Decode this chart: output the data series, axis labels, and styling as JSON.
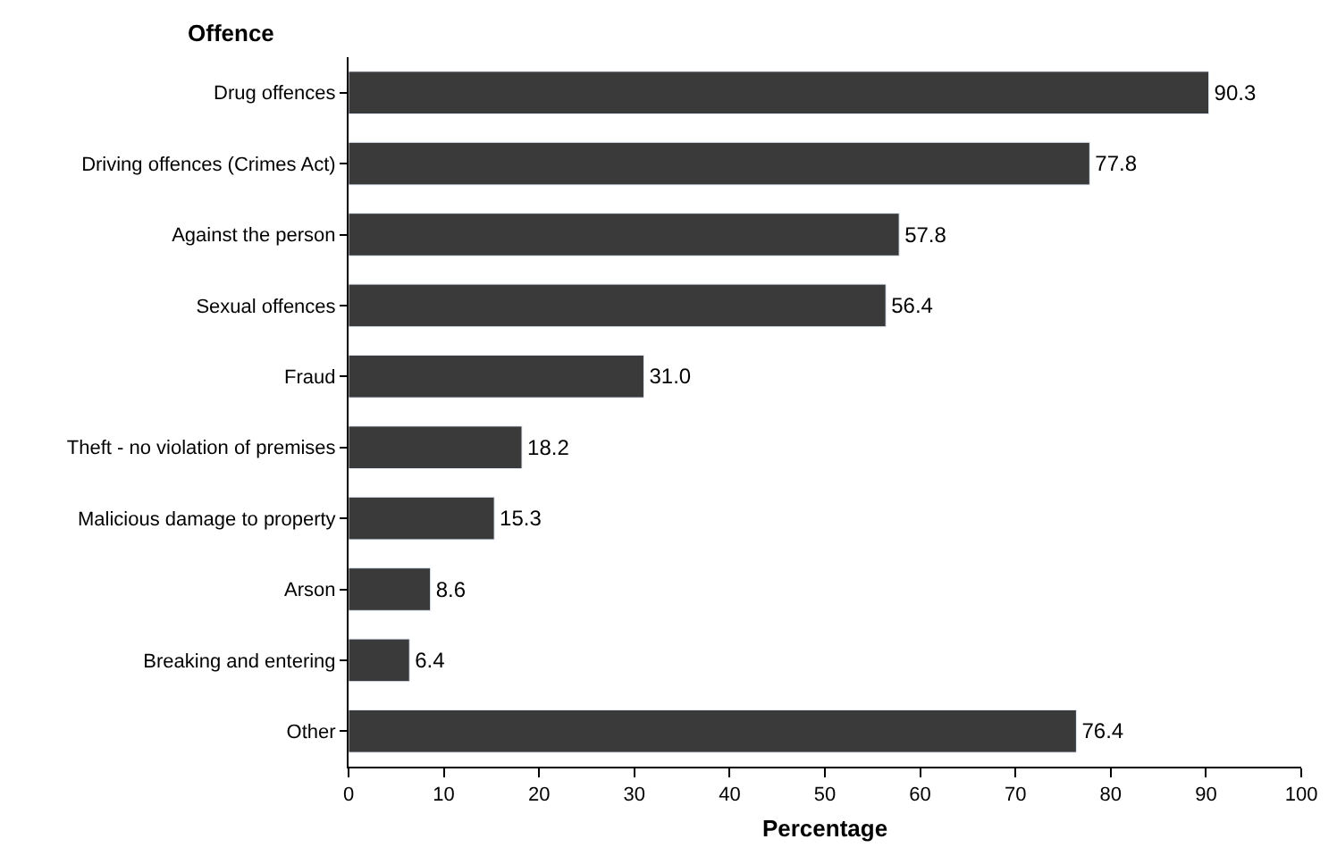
{
  "chart_data": {
    "type": "bar",
    "orientation": "horizontal",
    "xlabel": "Percentage",
    "ylabel": "Offence",
    "categories": [
      "Drug offences",
      "Driving offences (Crimes Act)",
      "Against the person",
      "Sexual offences",
      "Fraud",
      "Theft - no violation of premises",
      "Malicious damage to property",
      "Arson",
      "Breaking and entering",
      "Other"
    ],
    "values": [
      90.3,
      77.8,
      57.8,
      56.4,
      31.0,
      18.2,
      15.3,
      8.6,
      6.4,
      76.4
    ],
    "value_labels": [
      "90.3",
      "77.8",
      "57.8",
      "56.4",
      "31.0",
      "18.2",
      "15.3",
      "8.6",
      "6.4",
      "76.4"
    ],
    "xlim": [
      0,
      100
    ],
    "xticks": [
      0,
      10,
      20,
      30,
      40,
      50,
      60,
      70,
      80,
      90,
      100
    ],
    "color": "#3a3a3a"
  }
}
